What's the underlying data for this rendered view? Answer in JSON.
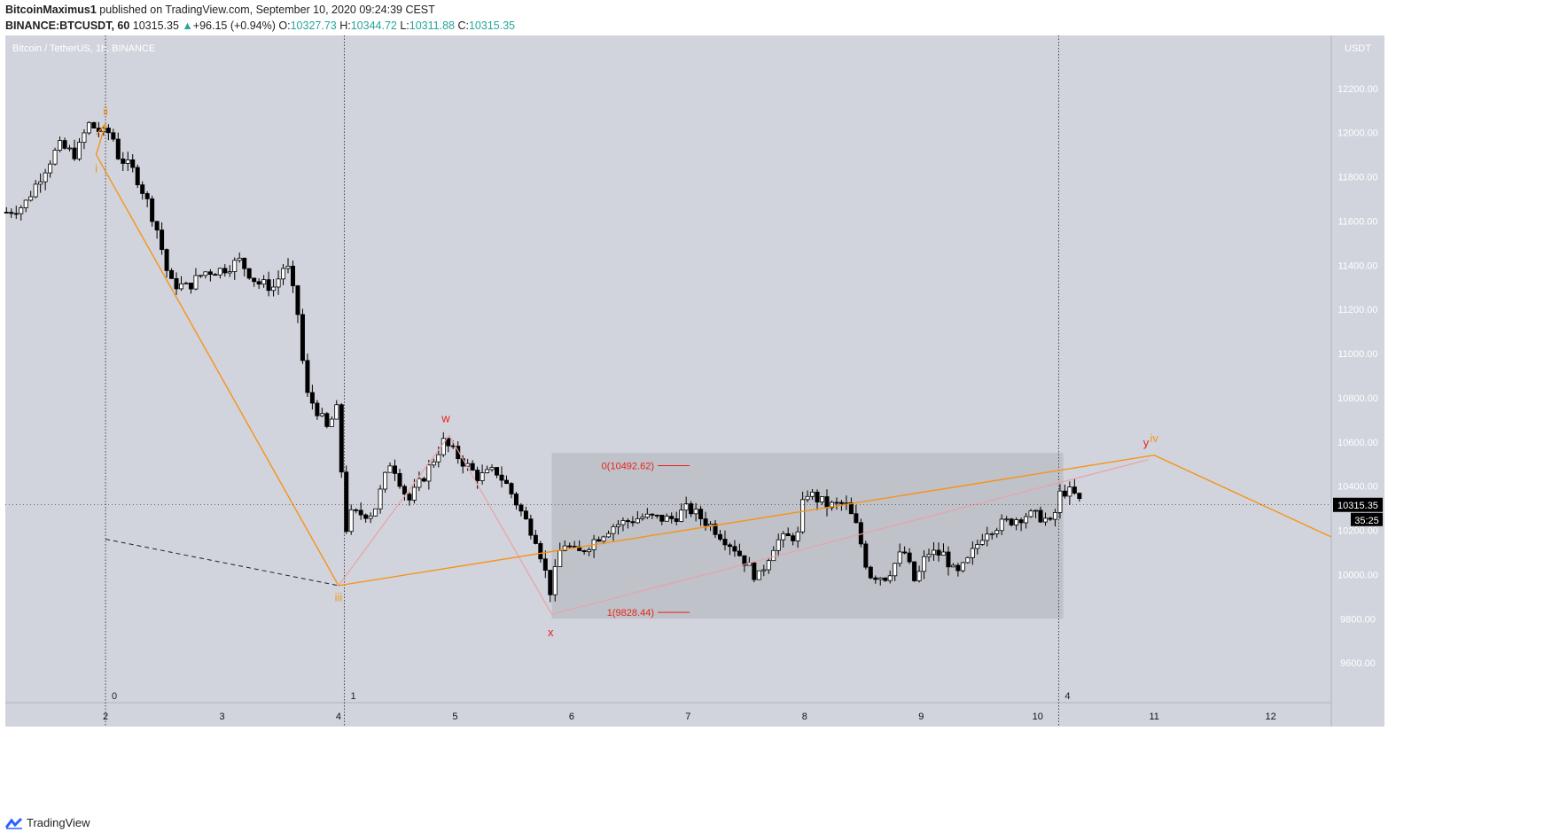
{
  "header": {
    "author": "BitcoinMaximus1",
    "published": "published on TradingView.com, September 10, 2020 09:24:39 CEST",
    "symbol": "BINANCE:BTCUSDT, 60",
    "last": "10315.35",
    "change_arrow": "▲",
    "change": "+96.15 (+0.94%)",
    "o_label": "O:",
    "o": "10327.73",
    "h_label": "H:",
    "h": "10344.72",
    "l_label": "L:",
    "l": "10311.88",
    "c_label": "C:",
    "c": "10315.35"
  },
  "footer": {
    "brand": "TradingView",
    "logo_icon": "tradingview-logo-icon"
  },
  "colors": {
    "plot_bg": "#d1d4dc",
    "plot_border": "#b2b5be",
    "box": "#bfc2c9",
    "orange": "#f7931a",
    "red": "#e8221b",
    "pink": "#e9a2a7",
    "candle_up": "#ffffff",
    "candle_down": "#000000",
    "wick": "#000000"
  },
  "chart_data": {
    "type": "candlestick",
    "title": "Bitcoin / TetherUS, 1h, BINANCE",
    "axis_unit": "USDT",
    "ylim": [
      9420,
      12440
    ],
    "xlim": [
      1.14,
      12.52
    ],
    "x_ticks": [
      "2",
      "3",
      "4",
      "5",
      "6",
      "7",
      "8",
      "9",
      "10",
      "11",
      "12"
    ],
    "x_tick_values": [
      2,
      3,
      4,
      5,
      6,
      7,
      8,
      9,
      10,
      11,
      12
    ],
    "y_ticks": [
      "12200.00",
      "12000.00",
      "11800.00",
      "11600.00",
      "11400.00",
      "11200.00",
      "11000.00",
      "10800.00",
      "10600.00",
      "10400.00",
      "10200.00",
      "10000.00",
      "9800.00",
      "9600.00"
    ],
    "y_tick_values": [
      12200,
      12000,
      11800,
      11600,
      11400,
      11200,
      11000,
      10800,
      10600,
      10400,
      10200,
      10000,
      9800,
      9600
    ],
    "last_price": {
      "value": 10315.35,
      "label": "10315.35",
      "countdown": "35:25"
    },
    "grid": false,
    "vertical_markers": [
      {
        "x": 2.0,
        "label": "0"
      },
      {
        "x": 4.05,
        "label": "1"
      },
      {
        "x": 10.18,
        "label": "4"
      }
    ],
    "candle_path": [
      [
        1.15,
        11640
      ],
      [
        1.3,
        11670
      ],
      [
        1.45,
        11810
      ],
      [
        1.6,
        11940
      ],
      [
        1.75,
        11900
      ],
      [
        1.85,
        12040
      ],
      [
        2.0,
        11990
      ],
      [
        2.05,
        12010
      ],
      [
        2.1,
        11900
      ],
      [
        2.25,
        11820
      ],
      [
        2.35,
        11700
      ],
      [
        2.45,
        11550
      ],
      [
        2.55,
        11320
      ],
      [
        2.7,
        11300
      ],
      [
        2.85,
        11370
      ],
      [
        3.0,
        11380
      ],
      [
        3.15,
        11420
      ],
      [
        3.3,
        11320
      ],
      [
        3.45,
        11300
      ],
      [
        3.55,
        11420
      ],
      [
        3.65,
        11180
      ],
      [
        3.72,
        10820
      ],
      [
        3.8,
        10760
      ],
      [
        3.9,
        10660
      ],
      [
        4.0,
        10760
      ],
      [
        4.05,
        10180
      ],
      [
        4.1,
        10270
      ],
      [
        4.3,
        10280
      ],
      [
        4.45,
        10520
      ],
      [
        4.6,
        10330
      ],
      [
        4.75,
        10460
      ],
      [
        4.9,
        10600
      ],
      [
        5.05,
        10520
      ],
      [
        5.2,
        10440
      ],
      [
        5.35,
        10470
      ],
      [
        5.45,
        10400
      ],
      [
        5.6,
        10250
      ],
      [
        5.7,
        10160
      ],
      [
        5.82,
        9920
      ],
      [
        5.92,
        10150
      ],
      [
        6.05,
        10090
      ],
      [
        6.2,
        10160
      ],
      [
        6.35,
        10220
      ],
      [
        6.6,
        10260
      ],
      [
        6.85,
        10250
      ],
      [
        7.0,
        10300
      ],
      [
        7.2,
        10220
      ],
      [
        7.4,
        10120
      ],
      [
        7.6,
        9980
      ],
      [
        7.75,
        10150
      ],
      [
        7.95,
        10180
      ],
      [
        8.0,
        10380
      ],
      [
        8.2,
        10310
      ],
      [
        8.35,
        10320
      ],
      [
        8.45,
        10210
      ],
      [
        8.55,
        10000
      ],
      [
        8.7,
        9990
      ],
      [
        8.85,
        10110
      ],
      [
        8.95,
        9960
      ],
      [
        9.05,
        10100
      ],
      [
        9.2,
        10090
      ],
      [
        9.3,
        9990
      ],
      [
        9.4,
        10060
      ],
      [
        9.55,
        10200
      ],
      [
        9.75,
        10240
      ],
      [
        9.9,
        10270
      ],
      [
        10.05,
        10260
      ],
      [
        10.12,
        10220
      ],
      [
        10.2,
        10380
      ],
      [
        10.3,
        10370
      ],
      [
        10.38,
        10315
      ]
    ],
    "box": {
      "x0": 5.83,
      "x1": 10.22,
      "y0": 9800,
      "y1": 10550
    },
    "fib_levels": [
      {
        "value": 10492.62,
        "label": "0(10492.62)"
      },
      {
        "value": 9828.44,
        "label": "1(9828.44)"
      }
    ],
    "orange_path": [
      [
        1.92,
        11990
      ],
      [
        2.0,
        12040
      ],
      [
        1.92,
        11900
      ],
      [
        4.0,
        9950
      ],
      [
        11.0,
        10540
      ],
      [
        12.52,
        10170
      ]
    ],
    "pink_path": [
      [
        4.0,
        9950
      ],
      [
        4.95,
        10630
      ],
      [
        5.83,
        9820
      ],
      [
        10.95,
        10520
      ]
    ],
    "dashed_line": [
      [
        2.0,
        10160
      ],
      [
        4.0,
        9950
      ]
    ],
    "wave_labels": [
      {
        "text": "ii",
        "x": 2.0,
        "y": 12080,
        "color": "orange"
      },
      {
        "text": "i",
        "x": 1.92,
        "y": 11820,
        "color": "orange"
      },
      {
        "text": "iii",
        "x": 4.0,
        "y": 9880,
        "color": "orange"
      },
      {
        "text": "w",
        "x": 4.92,
        "y": 10690,
        "color": "red"
      },
      {
        "text": "x",
        "x": 5.82,
        "y": 9720,
        "color": "red"
      },
      {
        "text": "y",
        "x": 10.93,
        "y": 10580,
        "color": "red"
      },
      {
        "text": "iv",
        "x": 11.0,
        "y": 10600,
        "color": "orange"
      }
    ]
  }
}
